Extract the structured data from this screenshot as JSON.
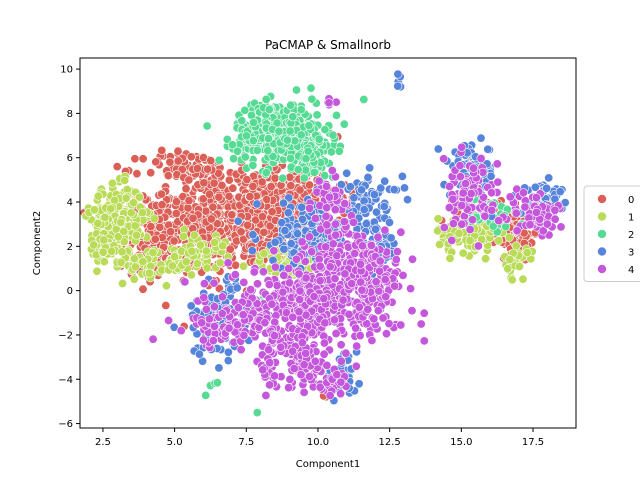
{
  "chart_data": {
    "type": "scatter",
    "title": "PaCMAP & Smallnorb",
    "xlabel": "Component1",
    "ylabel": "Component2",
    "xlim": [
      1.7,
      19.0
    ],
    "ylim": [
      -6.2,
      10.5
    ],
    "xticks": [
      2.5,
      5.0,
      7.5,
      10.0,
      12.5,
      15.0,
      17.5
    ],
    "xtick_labels": [
      "2.5",
      "5.0",
      "7.5",
      "10.0",
      "12.5",
      "15.0",
      "17.5"
    ],
    "yticks": [
      -6,
      -4,
      -2,
      0,
      2,
      4,
      6,
      8,
      10
    ],
    "ytick_labels": [
      "−6",
      "−4",
      "−2",
      "0",
      "2",
      "4",
      "6",
      "8",
      "10"
    ],
    "grid": false,
    "legend_position": "right-outside",
    "series": [
      {
        "name": "0",
        "color": "#db5f57",
        "clusters": [
          {
            "cx": 7.5,
            "cy": 3.0,
            "sx": 1.4,
            "sy": 1.1,
            "n": 520
          },
          {
            "cx": 5.2,
            "cy": 2.8,
            "sx": 1.0,
            "sy": 0.9,
            "n": 220
          },
          {
            "cx": 9.2,
            "cy": 4.2,
            "sx": 0.9,
            "sy": 0.8,
            "n": 220
          },
          {
            "cx": 5.5,
            "cy": 5.5,
            "sx": 0.8,
            "sy": 0.4,
            "n": 90
          },
          {
            "cx": 4.2,
            "cy": 2.2,
            "sx": 0.5,
            "sy": 1.0,
            "n": 70
          },
          {
            "cx": 16.6,
            "cy": 3.0,
            "sx": 0.6,
            "sy": 0.4,
            "n": 120
          },
          {
            "cx": 15.6,
            "cy": 3.8,
            "sx": 0.4,
            "sy": 0.3,
            "n": 50
          },
          {
            "cx": 17.0,
            "cy": 2.2,
            "sx": 0.3,
            "sy": 0.3,
            "n": 30
          },
          {
            "cx": 3.0,
            "cy": 2.6,
            "sx": 0.2,
            "sy": 0.2,
            "n": 10
          },
          {
            "cx": 10.2,
            "cy": -4.8,
            "sx": 0.05,
            "sy": 0.05,
            "n": 2
          }
        ]
      },
      {
        "name": "1",
        "color": "#b9db57",
        "clusters": [
          {
            "cx": 3.0,
            "cy": 3.3,
            "sx": 0.45,
            "sy": 0.7,
            "n": 220
          },
          {
            "cx": 2.7,
            "cy": 1.8,
            "sx": 0.35,
            "sy": 0.35,
            "n": 40
          },
          {
            "cx": 4.3,
            "cy": 1.2,
            "sx": 0.7,
            "sy": 0.4,
            "n": 60
          },
          {
            "cx": 5.8,
            "cy": 1.8,
            "sx": 0.5,
            "sy": 0.4,
            "n": 50
          },
          {
            "cx": 9.2,
            "cy": 1.2,
            "sx": 0.6,
            "sy": 0.4,
            "n": 90
          },
          {
            "cx": 15.2,
            "cy": 2.5,
            "sx": 0.5,
            "sy": 0.4,
            "n": 120
          },
          {
            "cx": 16.9,
            "cy": 1.3,
            "sx": 0.2,
            "sy": 0.4,
            "n": 30
          }
        ]
      },
      {
        "name": "2",
        "color": "#57d3db",
        "display_color": "#57db94",
        "clusters": [
          {
            "cx": 8.7,
            "cy": 7.1,
            "sx": 0.8,
            "sy": 0.7,
            "n": 420
          },
          {
            "cx": 9.8,
            "cy": 6.0,
            "sx": 0.4,
            "sy": 0.5,
            "n": 60
          },
          {
            "cx": 16.1,
            "cy": 3.4,
            "sx": 0.4,
            "sy": 0.3,
            "n": 40
          },
          {
            "cx": 7.9,
            "cy": -0.6,
            "sx": 0.1,
            "sy": 0.1,
            "n": 5
          },
          {
            "cx": 6.4,
            "cy": -4.2,
            "sx": 0.05,
            "sy": 0.05,
            "n": 3
          },
          {
            "cx": 6.1,
            "cy": -4.7,
            "sx": 0.02,
            "sy": 0.02,
            "n": 1
          },
          {
            "cx": 7.9,
            "cy": -5.5,
            "sx": 0.02,
            "sy": 0.02,
            "n": 1
          }
        ]
      },
      {
        "name": "3",
        "color": "#5784db",
        "clusters": [
          {
            "cx": 6.5,
            "cy": -1.3,
            "sx": 0.6,
            "sy": 0.9,
            "n": 110
          },
          {
            "cx": 9.7,
            "cy": 2.5,
            "sx": 0.9,
            "sy": 0.8,
            "n": 160
          },
          {
            "cx": 11.7,
            "cy": 4.0,
            "sx": 0.6,
            "sy": 0.6,
            "n": 80
          },
          {
            "cx": 10.8,
            "cy": -3.9,
            "sx": 0.3,
            "sy": 0.4,
            "n": 40
          },
          {
            "cx": 12.8,
            "cy": 9.5,
            "sx": 0.05,
            "sy": 0.15,
            "n": 6
          },
          {
            "cx": 15.4,
            "cy": 5.4,
            "sx": 0.4,
            "sy": 0.6,
            "n": 80
          },
          {
            "cx": 17.9,
            "cy": 3.9,
            "sx": 0.4,
            "sy": 0.4,
            "n": 70
          },
          {
            "cx": 12.2,
            "cy": 2.0,
            "sx": 0.3,
            "sy": 0.6,
            "n": 40
          }
        ]
      },
      {
        "name": "4",
        "color": "#c457db",
        "clusters": [
          {
            "cx": 9.8,
            "cy": -0.6,
            "sx": 1.5,
            "sy": 0.8,
            "n": 420
          },
          {
            "cx": 11.2,
            "cy": 1.2,
            "sx": 0.8,
            "sy": 0.9,
            "n": 160
          },
          {
            "cx": 7.5,
            "cy": -1.6,
            "sx": 0.9,
            "sy": 0.4,
            "n": 110
          },
          {
            "cx": 9.5,
            "cy": -3.2,
            "sx": 0.4,
            "sy": 0.6,
            "n": 70
          },
          {
            "cx": 8.3,
            "cy": -3.5,
            "sx": 0.2,
            "sy": 0.7,
            "n": 30
          },
          {
            "cx": 10.5,
            "cy": -4.2,
            "sx": 0.3,
            "sy": 0.3,
            "n": 25
          },
          {
            "cx": 10.4,
            "cy": 4.0,
            "sx": 0.3,
            "sy": 0.6,
            "n": 40
          },
          {
            "cx": 10.4,
            "cy": 8.4,
            "sx": 0.08,
            "sy": 0.2,
            "n": 6
          },
          {
            "cx": 15.3,
            "cy": 4.3,
            "sx": 0.5,
            "sy": 0.8,
            "n": 90
          },
          {
            "cx": 17.6,
            "cy": 3.5,
            "sx": 0.5,
            "sy": 0.5,
            "n": 60
          },
          {
            "cx": 12.0,
            "cy": 0.2,
            "sx": 0.4,
            "sy": 1.0,
            "n": 60
          }
        ]
      }
    ]
  }
}
